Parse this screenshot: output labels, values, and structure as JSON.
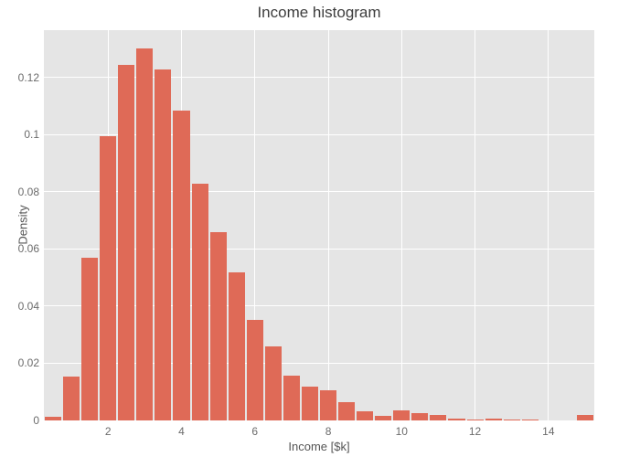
{
  "chart_data": {
    "type": "bar",
    "subtype": "histogram",
    "title": "Income histogram",
    "xlabel": "Income [$k]",
    "ylabel": "Density",
    "bin_start": 0.25,
    "bin_size": 0.5,
    "bin_centers": [
      0.5,
      1.0,
      1.5,
      2.0,
      2.5,
      3.0,
      3.5,
      4.0,
      4.5,
      5.0,
      5.5,
      6.0,
      6.5,
      7.0,
      7.5,
      8.0,
      8.5,
      9.0,
      9.5,
      10.0,
      10.5,
      11.0,
      11.5,
      12.0,
      12.5,
      13.0,
      13.5,
      14.0,
      14.5,
      15.0
    ],
    "values": [
      0.0014,
      0.0155,
      0.057,
      0.0995,
      0.1245,
      0.1303,
      0.123,
      0.1085,
      0.0827,
      0.066,
      0.0517,
      0.0352,
      0.0258,
      0.0157,
      0.0118,
      0.0104,
      0.0064,
      0.0032,
      0.0016,
      0.0036,
      0.0027,
      0.0019,
      0.0005,
      0.0003,
      0.0006,
      0.0003,
      0.0003,
      0.0,
      0.0,
      0.002
    ],
    "xlim": [
      0.25,
      15.25
    ],
    "ylim": [
      0,
      0.1366
    ],
    "x_ticks": [
      2,
      4,
      6,
      8,
      10,
      12,
      14
    ],
    "x_tick_labels": [
      "2",
      "4",
      "6",
      "8",
      "10",
      "12",
      "14"
    ],
    "y_ticks": [
      0,
      0.02,
      0.04,
      0.06,
      0.08,
      0.1,
      0.12
    ],
    "y_tick_labels": [
      "0",
      "0.02",
      "0.04",
      "0.06",
      "0.08",
      "0.1",
      "0.12"
    ],
    "grid": true,
    "legend": "none",
    "colors": {
      "bar": "#df6a57",
      "plot_background": "#e5e5e5",
      "gridline": "#ffffff",
      "title_text": "#3d3d3d",
      "axis_title_text": "#555555",
      "tick_text": "#6b6b6b",
      "paper_background": "#ffffff"
    }
  }
}
